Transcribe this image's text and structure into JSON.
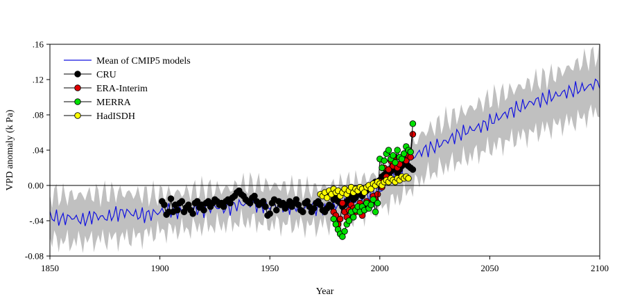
{
  "chart_data": {
    "type": "line",
    "title": "",
    "xlabel": "Year",
    "ylabel": "VPD anomaly (k Pa)",
    "xlim": [
      1850,
      2100
    ],
    "ylim": [
      -0.08,
      0.16
    ],
    "x_ticks": [
      1850,
      1900,
      1950,
      2000,
      2050,
      2100
    ],
    "x_tick_labels": [
      "1850",
      "1900",
      "1950",
      "2000",
      "2050",
      "2100"
    ],
    "y_ticks": [
      -0.08,
      -0.04,
      0.0,
      0.04,
      0.08,
      0.12,
      0.16
    ],
    "y_tick_labels": [
      "-0.08",
      "-.04",
      "0.00",
      ".04",
      ".08",
      ".12",
      ".16"
    ],
    "legend_position": "top-left",
    "colors": {
      "cmip5_mean": "#1010e0",
      "cmip5_spread": "#c0c0c0",
      "cru": "#000000",
      "era": "#e00000",
      "merra": "#00e000",
      "hadisdh": "#ffff00"
    },
    "legend": [
      {
        "label": "Mean of CMIP5 models",
        "series": "cmip5_mean",
        "marker": false
      },
      {
        "label": "CRU",
        "series": "cru",
        "marker": true
      },
      {
        "label": "ERA-Interim",
        "series": "era",
        "marker": true
      },
      {
        "label": "MERRA",
        "series": "merra",
        "marker": true
      },
      {
        "label": "HadISDH",
        "series": "hadisdh",
        "marker": true
      }
    ],
    "series": [
      {
        "name": "Mean of CMIP5 models",
        "key": "cmip5_mean",
        "x": [
          1850,
          1855,
          1860,
          1865,
          1870,
          1875,
          1880,
          1885,
          1890,
          1895,
          1900,
          1905,
          1910,
          1915,
          1920,
          1925,
          1930,
          1935,
          1940,
          1945,
          1950,
          1955,
          1960,
          1965,
          1970,
          1975,
          1980,
          1985,
          1990,
          1995,
          2000,
          2005,
          2010,
          2015,
          2020,
          2025,
          2030,
          2035,
          2040,
          2045,
          2050,
          2055,
          2060,
          2065,
          2070,
          2075,
          2080,
          2085,
          2090,
          2095,
          2100
        ],
        "values": [
          -0.035,
          -0.038,
          -0.036,
          -0.04,
          -0.034,
          -0.037,
          -0.032,
          -0.03,
          -0.034,
          -0.033,
          -0.03,
          -0.028,
          -0.03,
          -0.026,
          -0.027,
          -0.024,
          -0.026,
          -0.022,
          -0.02,
          -0.022,
          -0.024,
          -0.022,
          -0.024,
          -0.025,
          -0.024,
          -0.027,
          -0.022,
          -0.02,
          -0.016,
          -0.01,
          -0.005,
          0.008,
          0.02,
          0.032,
          0.04,
          0.044,
          0.05,
          0.057,
          0.062,
          0.066,
          0.072,
          0.078,
          0.085,
          0.09,
          0.095,
          0.098,
          0.102,
          0.106,
          0.109,
          0.112,
          0.118
        ]
      },
      {
        "name": "CMIP5 range",
        "key": "cmip5_spread",
        "x": [
          1850,
          1860,
          1870,
          1880,
          1890,
          1900,
          1910,
          1920,
          1930,
          1940,
          1950,
          1960,
          1970,
          1980,
          1990,
          2000,
          2010,
          2020,
          2030,
          2040,
          2050,
          2060,
          2070,
          2080,
          2090,
          2100
        ],
        "lower": [
          -0.062,
          -0.064,
          -0.062,
          -0.06,
          -0.058,
          -0.052,
          -0.05,
          -0.046,
          -0.044,
          -0.04,
          -0.044,
          -0.044,
          -0.046,
          -0.042,
          -0.034,
          -0.026,
          -0.012,
          0.01,
          0.022,
          0.032,
          0.042,
          0.052,
          0.06,
          0.068,
          0.074,
          0.086
        ],
        "upper": [
          -0.01,
          -0.012,
          -0.01,
          -0.008,
          -0.01,
          -0.01,
          -0.008,
          -0.004,
          -0.004,
          0.002,
          0.0,
          -0.002,
          -0.004,
          0.0,
          0.004,
          0.014,
          0.034,
          0.06,
          0.074,
          0.086,
          0.098,
          0.108,
          0.118,
          0.126,
          0.138,
          0.15
        ]
      },
      {
        "name": "CRU",
        "key": "cru",
        "x": [
          1901,
          1902,
          1903,
          1904,
          1905,
          1906,
          1907,
          1908,
          1909,
          1910,
          1911,
          1912,
          1913,
          1914,
          1915,
          1916,
          1917,
          1918,
          1919,
          1920,
          1921,
          1922,
          1923,
          1924,
          1925,
          1926,
          1927,
          1928,
          1929,
          1930,
          1931,
          1932,
          1933,
          1934,
          1935,
          1936,
          1937,
          1938,
          1939,
          1940,
          1941,
          1942,
          1943,
          1944,
          1945,
          1946,
          1947,
          1948,
          1949,
          1950,
          1951,
          1952,
          1953,
          1954,
          1955,
          1956,
          1957,
          1958,
          1959,
          1960,
          1961,
          1962,
          1963,
          1964,
          1965,
          1966,
          1967,
          1968,
          1969,
          1970,
          1971,
          1972,
          1973,
          1974,
          1975,
          1976,
          1977,
          1978,
          1979,
          1980,
          1981,
          1982,
          1983,
          1984,
          1985,
          1986,
          1987,
          1988,
          1989,
          1990,
          1991,
          1992,
          1993,
          1994,
          1995,
          1996,
          1997,
          1998,
          1999,
          2000,
          2001,
          2002,
          2003,
          2004,
          2005,
          2006,
          2007,
          2008,
          2009,
          2010,
          2011,
          2012,
          2013,
          2014,
          2015
        ],
        "values": [
          -0.018,
          -0.022,
          -0.033,
          -0.03,
          -0.015,
          -0.03,
          -0.022,
          -0.028,
          -0.02,
          -0.018,
          -0.03,
          -0.025,
          -0.022,
          -0.028,
          -0.032,
          -0.02,
          -0.018,
          -0.025,
          -0.022,
          -0.028,
          -0.02,
          -0.018,
          -0.024,
          -0.02,
          -0.016,
          -0.018,
          -0.022,
          -0.02,
          -0.024,
          -0.018,
          -0.016,
          -0.02,
          -0.014,
          -0.012,
          -0.008,
          -0.006,
          -0.01,
          -0.012,
          -0.016,
          -0.018,
          -0.02,
          -0.014,
          -0.012,
          -0.018,
          -0.022,
          -0.02,
          -0.018,
          -0.024,
          -0.034,
          -0.032,
          -0.02,
          -0.016,
          -0.028,
          -0.018,
          -0.022,
          -0.02,
          -0.026,
          -0.022,
          -0.018,
          -0.024,
          -0.02,
          -0.016,
          -0.022,
          -0.028,
          -0.03,
          -0.02,
          -0.018,
          -0.024,
          -0.03,
          -0.026,
          -0.02,
          -0.018,
          -0.022,
          -0.028,
          -0.03,
          -0.026,
          -0.022,
          -0.024,
          -0.016,
          -0.014,
          -0.018,
          -0.02,
          -0.024,
          -0.022,
          -0.018,
          -0.014,
          -0.012,
          -0.016,
          -0.014,
          -0.01,
          -0.008,
          -0.012,
          -0.008,
          -0.006,
          -0.004,
          -0.002,
          0.0,
          0.004,
          0.002,
          0.006,
          0.01,
          0.012,
          0.014,
          0.012,
          0.016,
          0.018,
          0.02,
          0.014,
          0.018,
          0.022,
          0.026,
          0.024,
          0.022,
          0.02,
          0.018
        ]
      },
      {
        "name": "ERA-Interim",
        "key": "era",
        "x": [
          1979,
          1980,
          1981,
          1982,
          1983,
          1984,
          1985,
          1986,
          1987,
          1988,
          1989,
          1990,
          1991,
          1992,
          1993,
          1994,
          1995,
          1996,
          1997,
          1998,
          1999,
          2000,
          2001,
          2002,
          2003,
          2004,
          2005,
          2006,
          2007,
          2008,
          2009,
          2010,
          2011,
          2012,
          2013,
          2014,
          2015
        ],
        "values": [
          -0.03,
          -0.034,
          -0.044,
          -0.038,
          -0.02,
          -0.03,
          -0.036,
          -0.028,
          -0.022,
          -0.026,
          -0.03,
          -0.024,
          -0.02,
          -0.034,
          -0.028,
          -0.018,
          -0.024,
          -0.02,
          -0.012,
          -0.016,
          -0.01,
          0.004,
          -0.002,
          0.02,
          0.01,
          0.018,
          0.028,
          0.022,
          0.032,
          0.02,
          0.024,
          0.03,
          0.036,
          0.028,
          0.034,
          0.032,
          0.058
        ]
      },
      {
        "name": "MERRA",
        "key": "merra",
        "x": [
          1979,
          1980,
          1981,
          1982,
          1983,
          1984,
          1985,
          1986,
          1987,
          1988,
          1989,
          1990,
          1991,
          1992,
          1993,
          1994,
          1995,
          1996,
          1997,
          1998,
          1999,
          2000,
          2001,
          2002,
          2003,
          2004,
          2005,
          2006,
          2007,
          2008,
          2009,
          2010,
          2011,
          2012,
          2013,
          2014,
          2015
        ],
        "values": [
          -0.038,
          -0.044,
          -0.05,
          -0.055,
          -0.058,
          -0.052,
          -0.044,
          -0.04,
          -0.03,
          -0.036,
          -0.028,
          -0.024,
          -0.03,
          -0.024,
          -0.028,
          -0.02,
          -0.026,
          -0.022,
          -0.016,
          -0.03,
          -0.02,
          0.03,
          0.02,
          0.028,
          0.036,
          0.04,
          0.03,
          0.034,
          0.026,
          0.04,
          0.032,
          0.03,
          0.036,
          0.044,
          0.04,
          0.038,
          0.07
        ]
      },
      {
        "name": "HadISDH",
        "key": "hadisdh",
        "x": [
          1973,
          1974,
          1975,
          1976,
          1977,
          1978,
          1979,
          1980,
          1981,
          1982,
          1983,
          1984,
          1985,
          1986,
          1987,
          1988,
          1989,
          1990,
          1991,
          1992,
          1993,
          1994,
          1995,
          1996,
          1997,
          1998,
          1999,
          2000,
          2001,
          2002,
          2003,
          2004,
          2005,
          2006,
          2007,
          2008,
          2009,
          2010,
          2011,
          2012,
          2013
        ],
        "values": [
          -0.01,
          -0.012,
          -0.008,
          -0.014,
          -0.006,
          -0.01,
          -0.004,
          -0.008,
          -0.006,
          -0.012,
          -0.008,
          -0.004,
          -0.01,
          -0.006,
          -0.002,
          -0.008,
          -0.004,
          -0.006,
          -0.002,
          -0.004,
          -0.008,
          -0.002,
          0.0,
          -0.004,
          0.002,
          0.0,
          0.004,
          0.002,
          0.0,
          0.004,
          0.006,
          0.004,
          0.008,
          0.006,
          0.004,
          0.008,
          0.006,
          0.01,
          0.008,
          0.01,
          0.008
        ]
      }
    ]
  }
}
